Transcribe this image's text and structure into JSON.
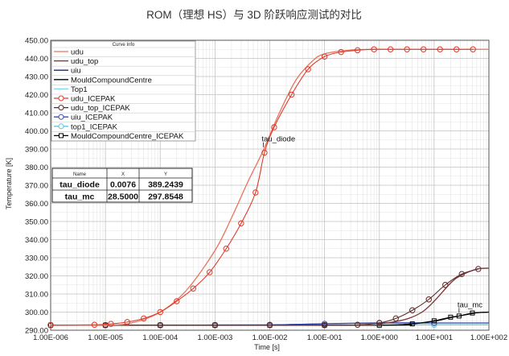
{
  "chart_data": {
    "type": "line",
    "title": "ROM（理想 HS）与 3D 阶跃响应测试的对比",
    "xlabel": "Time [s]",
    "ylabel": "Temperature [K]",
    "xscale": "log",
    "xlim": [
      1e-06,
      100
    ],
    "ylim": [
      290,
      450
    ],
    "xtick_labels": [
      "1.00E-006",
      "1.00E-005",
      "1.00E-004",
      "1.00E-003",
      "1.00E-002",
      "1.00E-001",
      "1.00E+000",
      "1.00E+001",
      "1.00E+002"
    ],
    "ytick_labels": [
      "290.00",
      "300.00",
      "310.00",
      "320.00",
      "330.00",
      "340.00",
      "350.00",
      "360.00",
      "370.00",
      "380.00",
      "390.00",
      "400.00",
      "410.00",
      "420.00",
      "430.00",
      "440.00",
      "450.00"
    ],
    "grid": true,
    "legend": {
      "title": "Curve Info",
      "placement": "top-left",
      "entries": [
        "udu",
        "udu_top",
        "uiu",
        "MouldCompoundCentre",
        "Top1",
        "udu_ICEPAK",
        "udu_top_ICEPAK",
        "uiu_ICEPAK",
        "top1_ICEPAK",
        "MouldCompoundCentre_ICEPAK"
      ]
    },
    "series": [
      {
        "name": "udu",
        "color": "#e8735a",
        "marker": "none",
        "x": [
          1e-06,
          1e-05,
          3e-05,
          0.0001,
          0.0003,
          0.001,
          0.002,
          0.004,
          0.0076,
          0.015,
          0.03,
          0.06,
          0.1,
          0.3,
          1,
          10,
          100
        ],
        "y": [
          292.8,
          292.8,
          294.0,
          300.0,
          312.0,
          334.0,
          352.0,
          372.0,
          389.2,
          410.0,
          428.0,
          438.5,
          442.5,
          444.6,
          445.0,
          445.0,
          445.0
        ]
      },
      {
        "name": "udu_top",
        "color": "#7b3530",
        "marker": "none",
        "x": [
          1e-06,
          0.3,
          1,
          3,
          6,
          10,
          20,
          30,
          60,
          100
        ],
        "y": [
          292.8,
          292.8,
          293.5,
          296.0,
          300.0,
          306.0,
          316.0,
          320.0,
          323.7,
          324.2
        ]
      },
      {
        "name": "uiu",
        "color": "#1a237e",
        "marker": "none",
        "x": [
          1e-06,
          0.001,
          0.01,
          0.1,
          1,
          10,
          100
        ],
        "y": [
          292.8,
          292.8,
          292.9,
          293.6,
          294.0,
          294.0,
          294.0
        ]
      },
      {
        "name": "MouldCompoundCentre",
        "color": "#000000",
        "marker": "none",
        "x": [
          1e-06,
          1,
          3,
          10,
          20,
          28.5,
          60,
          100
        ],
        "y": [
          292.8,
          292.8,
          293.2,
          295.0,
          297.0,
          297.85,
          299.6,
          300.0
        ]
      },
      {
        "name": "Top1",
        "color": "#7fd8e8",
        "marker": "none",
        "x": [
          1e-06,
          0.1,
          1,
          10,
          100
        ],
        "y": [
          292.8,
          292.8,
          292.9,
          293.0,
          293.0
        ]
      },
      {
        "name": "udu_ICEPAK",
        "color": "#e03a2a",
        "marker": "circle",
        "x": [
          1e-06,
          6.3e-06,
          1.26e-05,
          2.5e-05,
          5e-05,
          0.0001,
          0.0002,
          0.0004,
          0.0008,
          0.0016,
          0.003,
          0.0055,
          0.008,
          0.012,
          0.025,
          0.05,
          0.1,
          0.2,
          0.4,
          0.8,
          1.6,
          3.2,
          6.4,
          12.8,
          25.6,
          51.2
        ],
        "y": [
          292.8,
          293.0,
          293.5,
          294.5,
          296.5,
          300.0,
          306.0,
          313.0,
          322.0,
          335.0,
          349.0,
          366.0,
          388.0,
          402.0,
          420.0,
          434.0,
          441.0,
          443.5,
          444.5,
          445.0,
          445.0,
          445.0,
          445.0,
          445.0,
          445.0,
          445.0
        ]
      },
      {
        "name": "udu_top_ICEPAK",
        "color": "#5a2a28",
        "marker": "circle",
        "x": [
          1e-06,
          1e-05,
          0.0001,
          0.001,
          0.01,
          0.1,
          0.4,
          1,
          2,
          4,
          8,
          16,
          32,
          64
        ],
        "y": [
          292.8,
          292.8,
          292.8,
          292.8,
          292.8,
          292.8,
          293.0,
          294.0,
          296.5,
          301.0,
          307.0,
          315.0,
          321.0,
          323.8
        ]
      },
      {
        "name": "uiu_ICEPAK",
        "color": "#3a4ab0",
        "marker": "circle",
        "x": [
          1e-06,
          1e-05,
          0.0001,
          0.001,
          0.01,
          0.1,
          1,
          10,
          100
        ],
        "y": [
          292.8,
          292.8,
          292.8,
          292.9,
          293.0,
          293.5,
          294.0,
          294.0,
          294.0
        ]
      },
      {
        "name": "top1_ICEPAK",
        "color": "#5fc8d8",
        "marker": "circle",
        "x": [
          1e-06,
          0.001,
          0.1,
          1,
          10,
          100
        ],
        "y": [
          292.8,
          292.8,
          292.8,
          292.9,
          293.0,
          293.0
        ]
      },
      {
        "name": "MouldCompoundCentre_ICEPAK",
        "color": "#000000",
        "marker": "square",
        "x": [
          1e-06,
          1e-05,
          0.0001,
          0.001,
          0.01,
          0.1,
          1,
          4,
          10,
          20,
          28.5,
          50,
          100
        ],
        "y": [
          292.8,
          292.8,
          292.8,
          292.8,
          292.8,
          292.8,
          292.8,
          293.5,
          295.2,
          297.2,
          297.85,
          299.5,
          300.0
        ]
      }
    ],
    "annotations": [
      {
        "text": "tau_diode",
        "x": 0.0076,
        "y": 389.2439
      },
      {
        "text": "tau_mc",
        "x": 28.5,
        "y": 297.8548
      }
    ],
    "marker_table": {
      "headers": [
        "Name",
        "X",
        "Y"
      ],
      "rows": [
        [
          "tau_diode",
          "0.0076",
          "389.2439"
        ],
        [
          "tau_mc",
          "28.5000",
          "297.8548"
        ]
      ]
    }
  }
}
